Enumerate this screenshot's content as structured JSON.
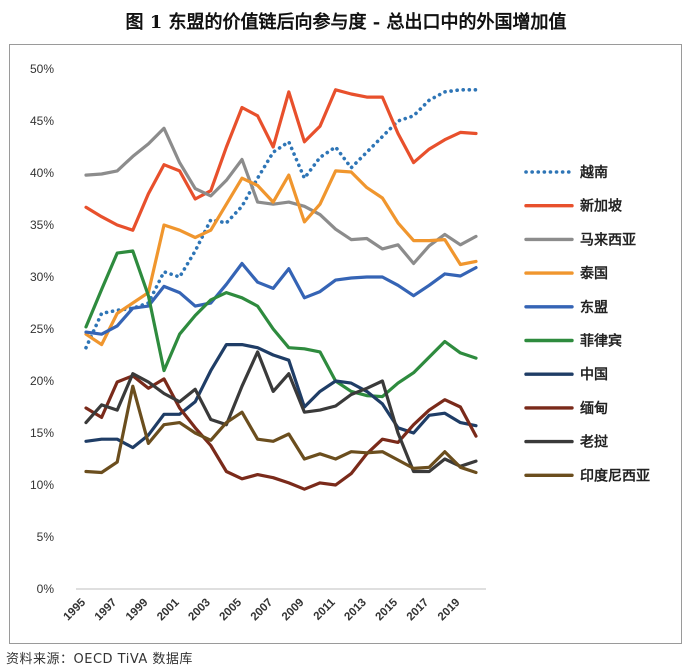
{
  "figure_title": "图 1  东盟的价值链后向参与度 - 总出口中的外国增加值",
  "source_text": "资料来源：OECD TiVA 数据库",
  "chart_data": {
    "type": "line",
    "title": "东盟的价值链后向参与度 - 总出口中的外国增加值",
    "xlabel": "",
    "ylabel": "",
    "ylim": [
      0,
      50
    ],
    "y_ticks": [
      "0%",
      "5%",
      "10%",
      "15%",
      "20%",
      "25%",
      "30%",
      "35%",
      "40%",
      "45%",
      "50%"
    ],
    "y_tick_values": [
      0,
      5,
      10,
      15,
      20,
      25,
      30,
      35,
      40,
      45,
      50
    ],
    "x": [
      1995,
      1996,
      1997,
      1998,
      1999,
      2000,
      2001,
      2002,
      2003,
      2004,
      2005,
      2006,
      2007,
      2008,
      2009,
      2010,
      2011,
      2012,
      2013,
      2014,
      2015,
      2016,
      2017,
      2018,
      2019,
      2020
    ],
    "x_tick_labels": [
      "1995",
      "1997",
      "1999",
      "2001",
      "2003",
      "2005",
      "2007",
      "2009",
      "2011",
      "2013",
      "2015",
      "2017",
      "2019"
    ],
    "grid": false,
    "legend_position": "right",
    "series": [
      {
        "name": "越南",
        "color": "#2e75b6",
        "dash": "dot",
        "values": [
          23.2,
          26.5,
          26.8,
          27.0,
          27.5,
          30.5,
          30.0,
          32.5,
          35.5,
          35.2,
          36.8,
          39.5,
          42.0,
          43.0,
          39.5,
          41.5,
          42.5,
          40.5,
          42.0,
          43.5,
          45.0,
          45.5,
          47.0,
          47.8,
          48.0,
          48.0
        ]
      },
      {
        "name": "新加坡",
        "color": "#e8502c",
        "dash": "solid",
        "values": [
          36.7,
          35.8,
          35.0,
          34.5,
          38.0,
          40.8,
          40.2,
          37.5,
          38.3,
          42.5,
          46.3,
          45.5,
          42.5,
          47.8,
          43.0,
          44.5,
          48.0,
          47.6,
          47.3,
          47.3,
          43.8,
          41.0,
          42.3,
          43.2,
          43.9,
          43.8
        ]
      },
      {
        "name": "马来西亚",
        "color": "#8c8c8c",
        "dash": "solid",
        "values": [
          39.8,
          39.9,
          40.2,
          41.6,
          42.8,
          44.3,
          41.0,
          38.5,
          37.8,
          39.3,
          41.3,
          37.2,
          37.0,
          37.2,
          36.8,
          36.0,
          34.6,
          33.6,
          33.7,
          32.7,
          33.1,
          31.3,
          33.0,
          34.1,
          33.1,
          33.9
        ]
      },
      {
        "name": "泰国",
        "color": "#f0962e",
        "dash": "solid",
        "values": [
          24.5,
          23.5,
          26.5,
          27.5,
          28.5,
          35.0,
          34.5,
          33.8,
          34.5,
          37.0,
          39.5,
          38.8,
          37.2,
          39.8,
          35.3,
          37.0,
          40.2,
          40.1,
          38.6,
          37.6,
          35.2,
          33.5,
          33.5,
          33.6,
          31.2,
          31.5
        ]
      },
      {
        "name": "东盟",
        "color": "#3564b5",
        "dash": "solid",
        "values": [
          24.7,
          24.5,
          25.3,
          27.0,
          27.2,
          29.1,
          28.5,
          27.2,
          27.5,
          29.3,
          31.3,
          29.5,
          28.9,
          30.8,
          28.0,
          28.6,
          29.7,
          29.9,
          30.0,
          30.0,
          29.2,
          28.2,
          29.2,
          30.3,
          30.1,
          30.9
        ]
      },
      {
        "name": "菲律宾",
        "color": "#2e8b3e",
        "dash": "solid",
        "values": [
          25.2,
          28.8,
          32.3,
          32.5,
          28.2,
          21.0,
          24.5,
          26.3,
          27.8,
          28.5,
          28.0,
          27.2,
          25.0,
          23.2,
          23.1,
          22.8,
          20.0,
          19.0,
          18.6,
          18.5,
          19.8,
          20.8,
          22.3,
          23.8,
          22.7,
          22.2
        ]
      },
      {
        "name": "中国",
        "color": "#1f3d66",
        "dash": "solid",
        "values": [
          14.2,
          14.4,
          14.4,
          13.6,
          14.8,
          16.8,
          16.8,
          18.0,
          21.0,
          23.5,
          23.5,
          23.2,
          22.5,
          22.0,
          17.5,
          19.0,
          20.0,
          19.8,
          19.0,
          17.8,
          15.5,
          15.0,
          16.7,
          16.9,
          16.0,
          15.7
        ]
      },
      {
        "name": "缅甸",
        "color": "#7a2a1a",
        "dash": "solid",
        "values": [
          17.4,
          16.5,
          19.9,
          20.5,
          19.3,
          20.2,
          17.4,
          15.5,
          13.8,
          11.3,
          10.6,
          11.0,
          10.7,
          10.2,
          9.6,
          10.2,
          10.0,
          11.1,
          13.0,
          14.4,
          14.1,
          15.8,
          17.2,
          18.2,
          17.5,
          14.7
        ]
      },
      {
        "name": "老挝",
        "color": "#3a3a3a",
        "dash": "solid",
        "values": [
          16.0,
          17.7,
          17.2,
          20.7,
          19.9,
          18.8,
          18.0,
          19.2,
          16.3,
          15.8,
          19.5,
          22.8,
          19.0,
          20.7,
          17.0,
          17.2,
          17.6,
          18.7,
          19.3,
          20.0,
          15.0,
          11.3,
          11.3,
          12.5,
          11.8,
          12.3
        ]
      },
      {
        "name": "印度尼西亚",
        "color": "#6b4e1e",
        "dash": "solid",
        "values": [
          11.3,
          11.2,
          12.2,
          19.5,
          14.0,
          15.8,
          16.0,
          15.0,
          14.3,
          16.0,
          17.0,
          14.4,
          14.2,
          14.9,
          12.5,
          13.0,
          12.5,
          13.2,
          13.1,
          13.2,
          12.4,
          11.6,
          11.7,
          13.2,
          11.7,
          11.2
        ]
      }
    ]
  }
}
